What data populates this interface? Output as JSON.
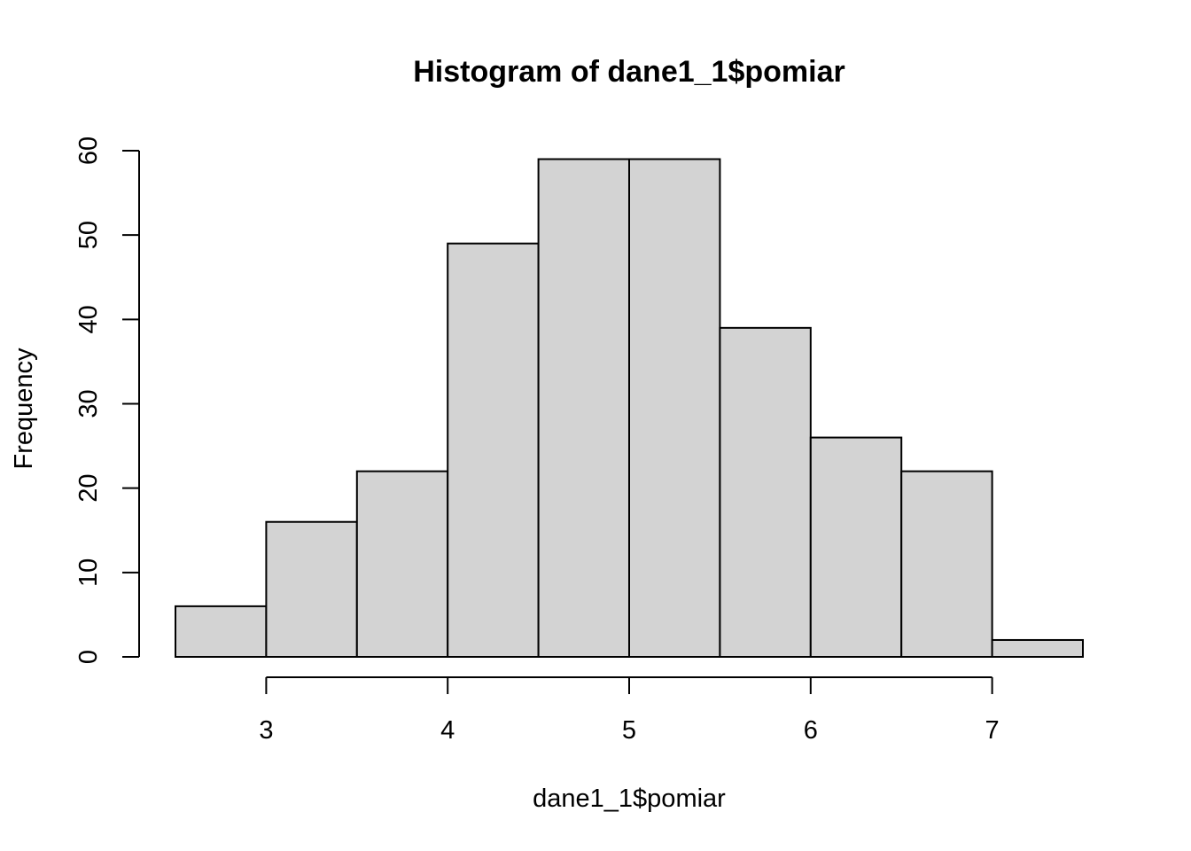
{
  "chart_data": {
    "type": "bar",
    "title": "Histogram of dane1_1$pomiar",
    "xlabel": "dane1_1$pomiar",
    "ylabel": "Frequency",
    "bins": [
      {
        "start": 2.5,
        "end": 3.0,
        "count": 6
      },
      {
        "start": 3.0,
        "end": 3.5,
        "count": 16
      },
      {
        "start": 3.5,
        "end": 4.0,
        "count": 22
      },
      {
        "start": 4.0,
        "end": 4.5,
        "count": 49
      },
      {
        "start": 4.5,
        "end": 5.0,
        "count": 59
      },
      {
        "start": 5.0,
        "end": 5.5,
        "count": 59
      },
      {
        "start": 5.5,
        "end": 6.0,
        "count": 39
      },
      {
        "start": 6.0,
        "end": 6.5,
        "count": 26
      },
      {
        "start": 6.5,
        "end": 7.0,
        "count": 22
      },
      {
        "start": 7.0,
        "end": 7.5,
        "count": 2
      }
    ],
    "xlim": [
      2.5,
      7.5
    ],
    "ylim": [
      0,
      60
    ],
    "x_ticks": [
      3,
      4,
      5,
      6,
      7
    ],
    "y_ticks": [
      0,
      10,
      20,
      30,
      40,
      50,
      60
    ],
    "bar_fill": "#d3d3d3",
    "bar_stroke": "#000000",
    "grid": false
  }
}
